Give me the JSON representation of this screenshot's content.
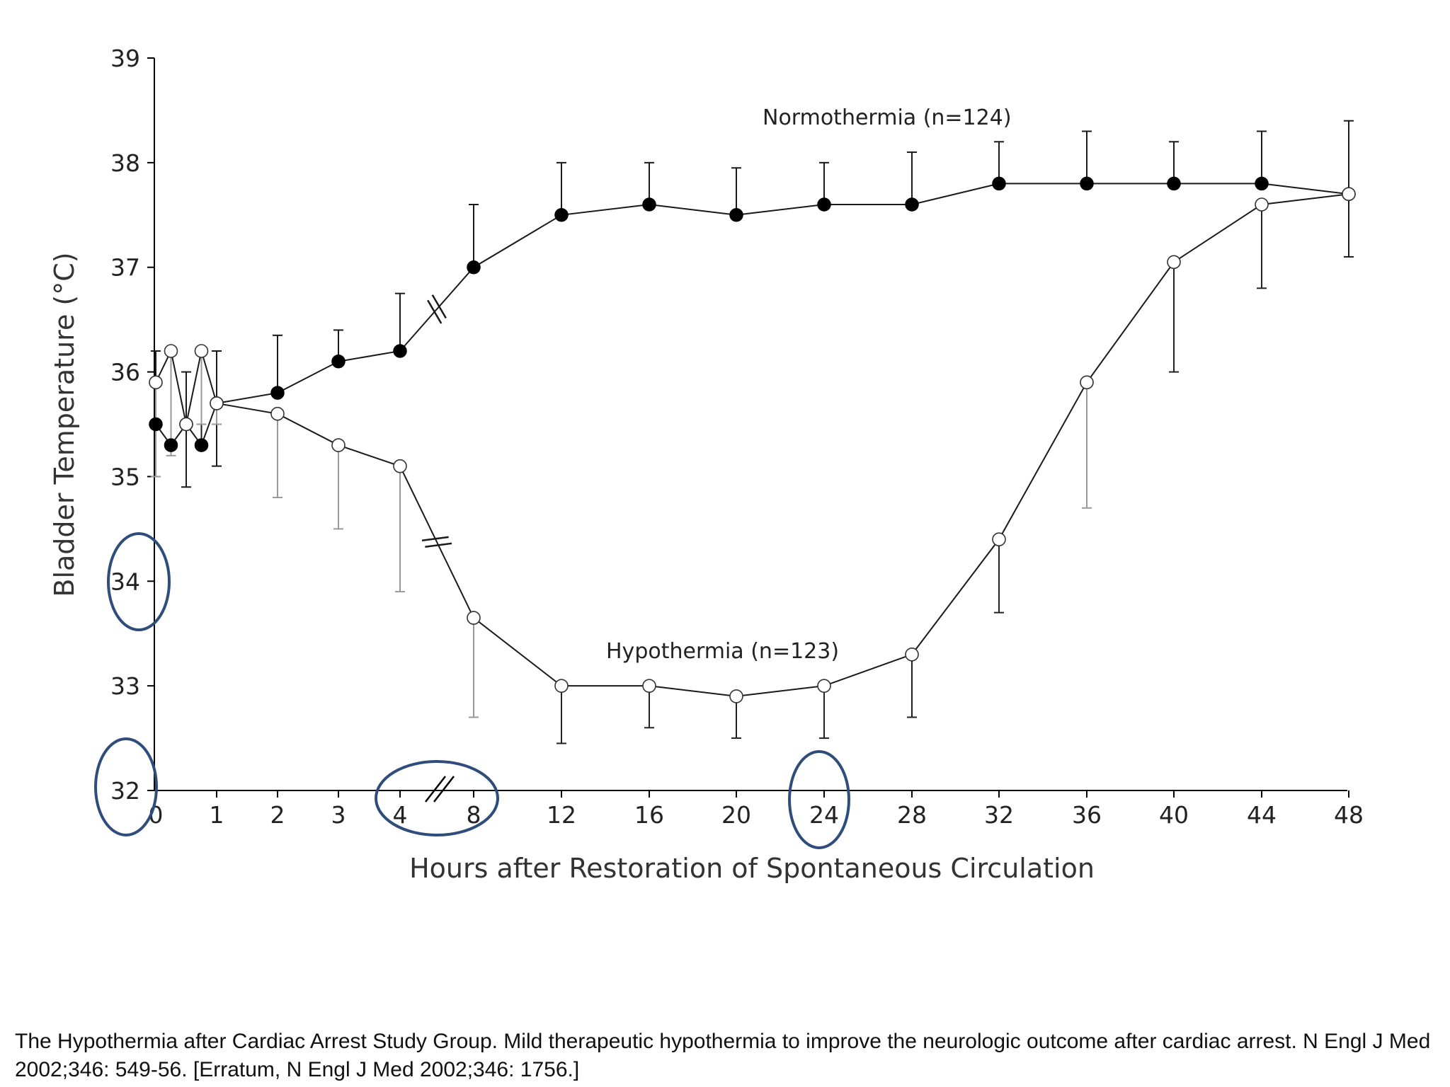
{
  "chart_data": {
    "type": "line",
    "title": "",
    "xlabel": "Hours after Restoration of Spontaneous Circulation",
    "ylabel": "Bladder Temperature (°C)",
    "ylim": [
      32,
      39
    ],
    "y_ticks": [
      "32",
      "33",
      "34",
      "35",
      "36",
      "37",
      "38",
      "39"
    ],
    "x_ticks": [
      "0",
      "1",
      "2",
      "3",
      "4",
      "8",
      "12",
      "16",
      "20",
      "24",
      "28",
      "32",
      "36",
      "40",
      "44",
      "48"
    ],
    "x_axis_break": "between 4 and 8",
    "grid": false,
    "series": [
      {
        "name": "Normothermia (n=124)",
        "marker": "filled-circle",
        "x": [
          0,
          0.25,
          0.5,
          0.75,
          1,
          2,
          3,
          4,
          8,
          12,
          16,
          20,
          24,
          28,
          32,
          36,
          40,
          44,
          48
        ],
        "values": [
          35.5,
          35.3,
          35.5,
          35.3,
          35.7,
          35.8,
          36.1,
          36.2,
          37.0,
          37.5,
          37.6,
          37.5,
          37.6,
          37.6,
          37.8,
          37.8,
          37.8,
          37.8,
          37.7
        ],
        "error_upper": [
          36.2,
          36.2,
          36.0,
          36.2,
          36.2,
          36.35,
          36.4,
          36.75,
          37.6,
          38.0,
          38.0,
          37.95,
          38.0,
          38.1,
          38.2,
          38.3,
          38.2,
          38.3,
          38.4
        ],
        "error_lower": [
          null,
          null,
          34.9,
          null,
          35.1,
          null,
          null,
          null,
          null,
          null,
          null,
          null,
          null,
          null,
          null,
          null,
          null,
          null,
          37.1
        ]
      },
      {
        "name": "Hypothermia (n=123)",
        "marker": "open-circle",
        "x": [
          0,
          0.25,
          0.5,
          0.75,
          1,
          2,
          3,
          4,
          8,
          12,
          16,
          20,
          24,
          28,
          32,
          36,
          40,
          44,
          48
        ],
        "values": [
          35.9,
          36.2,
          35.5,
          36.2,
          35.7,
          35.6,
          35.3,
          35.1,
          33.65,
          33.0,
          33.0,
          32.9,
          33.0,
          33.3,
          34.4,
          35.9,
          37.05,
          37.6,
          37.7
        ],
        "error_upper": [
          null,
          null,
          null,
          null,
          null,
          null,
          null,
          null,
          null,
          null,
          null,
          null,
          null,
          null,
          null,
          null,
          null,
          null,
          null
        ],
        "error_lower": [
          35.0,
          35.2,
          35.5,
          35.5,
          35.5,
          34.8,
          34.5,
          33.9,
          32.7,
          32.45,
          32.6,
          32.5,
          32.5,
          32.7,
          33.7,
          34.7,
          36.0,
          36.8,
          null
        ]
      }
    ],
    "series_labels": [
      {
        "text": "Normothermia (n=124)"
      },
      {
        "text": "Hypothermia (n=123)"
      }
    ],
    "annotations": [
      "circled y tick 34",
      "circled y tick 32",
      "circled x-axis break 4–8",
      "circled x tick 24"
    ],
    "colors": {
      "axis": "#000000",
      "line": "#1a1a1a",
      "error_normo": "#1a1a1a",
      "error_hypo_light": "#999999",
      "error_hypo_dark": "#222222",
      "highlight": "#2f4d7a"
    }
  },
  "citation": "The Hypothermia after Cardiac Arrest Study Group. Mild therapeutic hypothermia to improve the neurologic outcome after cardiac arrest. N Engl J Med 2002;346: 549-56. [Erratum, N Engl J Med 2002;346: 1756.]"
}
